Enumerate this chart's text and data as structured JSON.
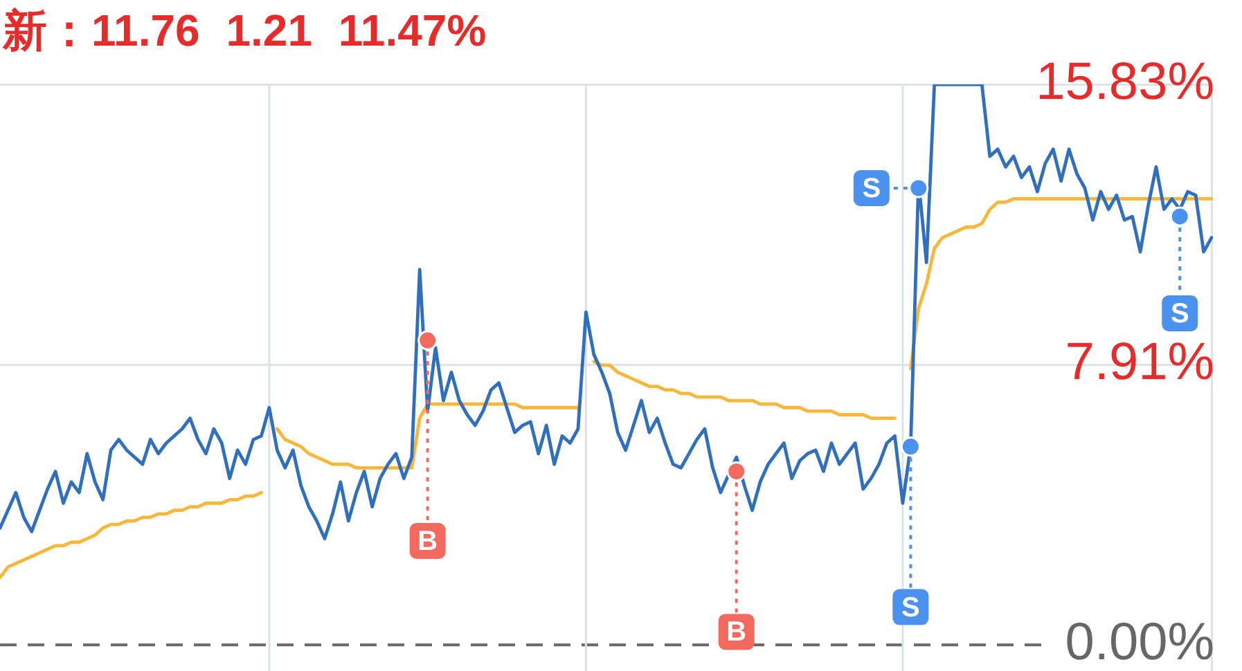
{
  "chart_data": {
    "type": "line",
    "title": "新：11.76 1.21 11.47%",
    "categories": [
      null,
      null,
      null,
      null,
      null,
      null,
      null,
      null,
      null,
      null,
      null,
      null,
      null,
      null,
      null,
      null,
      null,
      null,
      null,
      null,
      null,
      null,
      null,
      null,
      null,
      null,
      null,
      null,
      null,
      null,
      null,
      null,
      null,
      null,
      null,
      null,
      null,
      null,
      null,
      null,
      null,
      null,
      null,
      null,
      null,
      null,
      null,
      null,
      null,
      null,
      null,
      null,
      null,
      null,
      null,
      null,
      null,
      null,
      null,
      null,
      null,
      null,
      null,
      null,
      null,
      null,
      null,
      null,
      null,
      null,
      null,
      null,
      null,
      null,
      null,
      null,
      null,
      null,
      null,
      null,
      null,
      null,
      null,
      null,
      null,
      null,
      null,
      null,
      null,
      null,
      null,
      null,
      null,
      null,
      null,
      null,
      null,
      null,
      null,
      null,
      null,
      null,
      null,
      null,
      null,
      null,
      null,
      null,
      null,
      null,
      null,
      null,
      null,
      null,
      null,
      null,
      null,
      null,
      null,
      null,
      null,
      null,
      null,
      null,
      null,
      null,
      null,
      null,
      null,
      null,
      null,
      null,
      null,
      null,
      null,
      null,
      null,
      null,
      null,
      null,
      null,
      null,
      null,
      null,
      null,
      null,
      null,
      null,
      null,
      null,
      null,
      null,
      null,
      null
    ],
    "ylim": [
      -0.7,
      15.83
    ],
    "yticks": [
      {
        "value": 0,
        "label": "0.00%"
      },
      {
        "value": 7.91,
        "label": "7.91%"
      },
      {
        "value": 15.83,
        "label": "15.83%"
      }
    ],
    "tick_labels": "y",
    "grid": "y",
    "ref_lines": [
      {
        "axis": "y",
        "value": 0,
        "color": "#666666",
        "line_style": "dashed"
      }
    ],
    "series": [
      {
        "color": "#2f6fbd",
        "values": [
          3.3,
          3.8,
          4.3,
          3.6,
          3.2,
          3.8,
          4.4,
          4.9,
          4.0,
          4.6,
          4.3,
          5.4,
          4.6,
          4.1,
          5.5,
          5.8,
          5.5,
          5.3,
          5.1,
          5.8,
          5.4,
          5.7,
          5.9,
          6.1,
          6.4,
          5.8,
          5.4,
          6.1,
          5.7,
          4.7,
          5.5,
          5.1,
          5.8,
          5.9,
          6.7,
          5.5,
          5.0,
          5.5,
          4.5,
          3.9,
          3.5,
          3.0,
          3.7,
          4.6,
          3.5,
          4.3,
          4.9,
          3.9,
          4.7,
          5.1,
          5.4,
          4.7,
          5.3,
          10.6,
          6.6,
          8.4,
          6.9,
          7.7,
          6.9,
          6.5,
          6.2,
          6.6,
          7.2,
          7.4,
          6.7,
          6.0,
          6.2,
          6.3,
          5.4,
          6.2,
          5.1,
          5.9,
          5.7,
          6.1,
          9.4,
          8.2,
          7.7,
          7.1,
          6.0,
          5.5,
          6.2,
          6.9,
          6.0,
          6.4,
          5.7,
          5.1,
          5.0,
          5.4,
          5.8,
          6.1,
          5.0,
          4.3,
          4.8,
          5.3,
          4.5,
          3.8,
          4.6,
          5.1,
          5.4,
          5.7,
          4.7,
          5.2,
          5.4,
          5.5,
          4.9,
          5.7,
          5.1,
          5.4,
          5.7,
          4.4,
          4.7,
          5.1,
          5.7,
          5.9,
          4.0,
          5.6,
          13.1,
          10.8,
          15.83,
          15.83,
          15.83,
          15.83,
          15.83,
          15.83,
          15.83,
          13.8,
          14.0,
          13.5,
          13.8,
          13.2,
          13.5,
          12.8,
          13.6,
          14.0,
          13.1,
          14.0,
          13.3,
          12.9,
          12.0,
          12.8,
          12.3,
          12.7,
          12.0,
          12.1,
          11.1,
          12.4,
          13.5,
          12.3,
          12.6,
          12.3,
          12.8,
          12.7,
          11.1,
          11.5
        ]
      },
      {
        "color": "#f8b63a",
        "values": [
          1.9,
          2.2,
          2.3,
          2.4,
          2.5,
          2.6,
          2.7,
          2.8,
          2.8,
          2.9,
          2.9,
          3.0,
          3.1,
          3.3,
          3.4,
          3.4,
          3.5,
          3.5,
          3.6,
          3.6,
          3.7,
          3.7,
          3.8,
          3.8,
          3.9,
          3.9,
          4.0,
          4.0,
          4.0,
          4.1,
          4.1,
          4.2,
          4.2,
          4.3,
          null,
          6.1,
          5.8,
          5.7,
          5.6,
          5.4,
          5.3,
          5.2,
          5.1,
          5.1,
          5.1,
          5.0,
          5.0,
          5.0,
          5.0,
          5.0,
          5.0,
          5.0,
          5.0,
          6.4,
          6.8,
          6.8,
          6.8,
          6.8,
          6.8,
          6.8,
          6.8,
          6.8,
          6.8,
          6.8,
          6.8,
          6.8,
          6.7,
          6.7,
          6.7,
          6.7,
          6.7,
          6.7,
          6.7,
          6.7,
          null,
          8.0,
          7.9,
          7.9,
          7.7,
          7.6,
          7.5,
          7.4,
          7.3,
          7.3,
          7.2,
          7.2,
          7.1,
          7.1,
          7.0,
          7.0,
          7.0,
          7.0,
          6.9,
          6.9,
          6.9,
          6.9,
          6.8,
          6.8,
          6.8,
          6.7,
          6.7,
          6.7,
          6.6,
          6.6,
          6.6,
          6.6,
          6.5,
          6.5,
          6.5,
          6.5,
          6.4,
          6.4,
          6.4,
          6.4,
          null,
          7.8,
          9.5,
          10.2,
          11.2,
          11.5,
          11.6,
          11.7,
          11.8,
          11.8,
          11.9,
          12.3,
          12.5,
          12.5,
          12.6,
          12.6,
          12.6,
          12.6,
          12.6,
          12.6,
          12.6,
          12.6,
          12.6,
          12.6,
          12.6,
          12.6,
          12.6,
          12.6,
          12.6,
          12.6,
          12.6,
          12.6,
          12.6,
          12.6,
          12.6,
          12.6,
          12.6,
          12.6,
          12.6,
          12.6
        ]
      },
      {
        "type": "scatter",
        "name": "B",
        "color": "#f26a5e",
        "marker": "circle",
        "values": [
          null,
          null,
          null,
          null,
          null,
          null,
          null,
          null,
          null,
          null,
          null,
          null,
          null,
          null,
          null,
          null,
          null,
          null,
          null,
          null,
          null,
          null,
          null,
          null,
          null,
          null,
          null,
          null,
          null,
          null,
          null,
          null,
          null,
          null,
          null,
          null,
          null,
          null,
          null,
          null,
          null,
          null,
          null,
          null,
          null,
          null,
          null,
          null,
          null,
          null,
          null,
          null,
          null,
          null,
          8.6,
          null,
          null,
          null,
          null,
          null,
          null,
          null,
          null,
          null,
          null,
          null,
          null,
          null,
          null,
          null,
          null,
          null,
          null,
          null,
          null,
          null,
          null,
          null,
          null,
          null,
          null,
          null,
          null,
          null,
          null,
          null,
          null,
          null,
          null,
          null,
          null,
          null,
          null,
          4.9,
          null,
          null,
          null,
          null,
          null,
          null,
          null,
          null,
          null,
          null,
          null,
          null,
          null,
          null,
          null,
          null,
          null,
          null,
          null,
          null,
          null,
          null,
          null,
          null,
          null,
          null,
          null,
          null,
          null,
          null,
          null,
          null,
          null,
          null,
          null,
          null,
          null,
          null,
          null,
          null,
          null,
          null,
          null,
          null,
          null,
          null,
          null,
          null,
          null,
          null,
          null,
          null,
          null,
          null,
          null,
          null,
          null,
          null,
          null,
          null
        ]
      },
      {
        "type": "scatter",
        "name": "S",
        "color": "#4b92ef",
        "marker": "circle",
        "values": [
          null,
          null,
          null,
          null,
          null,
          null,
          null,
          null,
          null,
          null,
          null,
          null,
          null,
          null,
          null,
          null,
          null,
          null,
          null,
          null,
          null,
          null,
          null,
          null,
          null,
          null,
          null,
          null,
          null,
          null,
          null,
          null,
          null,
          null,
          null,
          null,
          null,
          null,
          null,
          null,
          null,
          null,
          null,
          null,
          null,
          null,
          null,
          null,
          null,
          null,
          null,
          null,
          null,
          null,
          null,
          null,
          null,
          null,
          null,
          null,
          null,
          null,
          null,
          null,
          null,
          null,
          null,
          null,
          null,
          null,
          null,
          null,
          null,
          null,
          null,
          null,
          null,
          null,
          null,
          null,
          null,
          null,
          null,
          null,
          null,
          null,
          null,
          null,
          null,
          null,
          null,
          null,
          null,
          null,
          null,
          null,
          null,
          null,
          null,
          null,
          null,
          null,
          null,
          null,
          null,
          null,
          null,
          null,
          null,
          null,
          null,
          null,
          null,
          null,
          null,
          5.6,
          12.9,
          null,
          null,
          null,
          null,
          null,
          null,
          null,
          null,
          null,
          null,
          null,
          null,
          null,
          null,
          null,
          null,
          null,
          null,
          null,
          null,
          null,
          null,
          null,
          null,
          null,
          null,
          null,
          null,
          null,
          null,
          null,
          null,
          12.1,
          null,
          null,
          null,
          null
        ]
      }
    ]
  }
}
